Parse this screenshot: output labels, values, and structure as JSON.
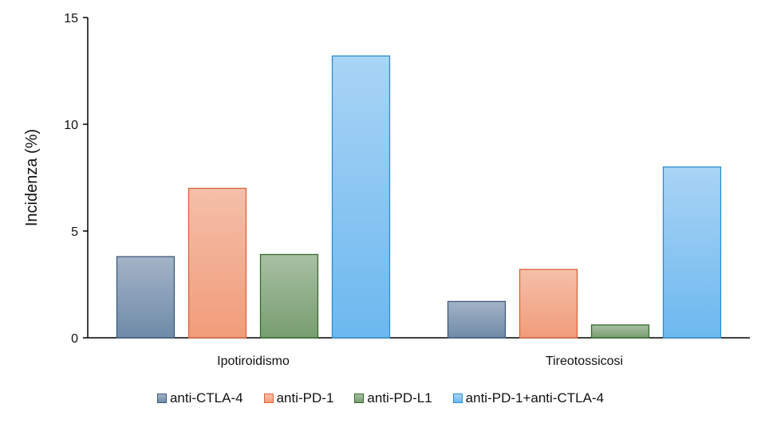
{
  "chart_data": {
    "type": "bar",
    "title": "",
    "xlabel": "",
    "ylabel": "Incidenza  (%)",
    "categories": [
      "Ipotiroidismo",
      "Tireotossicosi"
    ],
    "ylim": [
      0,
      15
    ],
    "yticks": [
      0,
      5,
      10,
      15
    ],
    "grid": false,
    "legend_position": "bottom",
    "series": [
      {
        "name": "anti-CTLA-4",
        "values": [
          3.8,
          1.7
        ],
        "color_top": "#a3b3c7",
        "color_bottom": "#6f8ba8",
        "stroke": "#3c5a7a"
      },
      {
        "name": "anti-PD-1",
        "values": [
          7.0,
          3.2
        ],
        "color_top": "#f5bfa9",
        "color_bottom": "#f19c7a",
        "stroke": "#d9643a"
      },
      {
        "name": "anti-PD-L1",
        "values": [
          3.9,
          0.6
        ],
        "color_top": "#a8bfa3",
        "color_bottom": "#789e70",
        "stroke": "#356b2c"
      },
      {
        "name": "anti-PD-1+anti-CTLA-4",
        "values": [
          13.2,
          8.0
        ],
        "color_top": "#a9d4f5",
        "color_bottom": "#6cb8ef",
        "stroke": "#2a8fd2"
      }
    ]
  }
}
